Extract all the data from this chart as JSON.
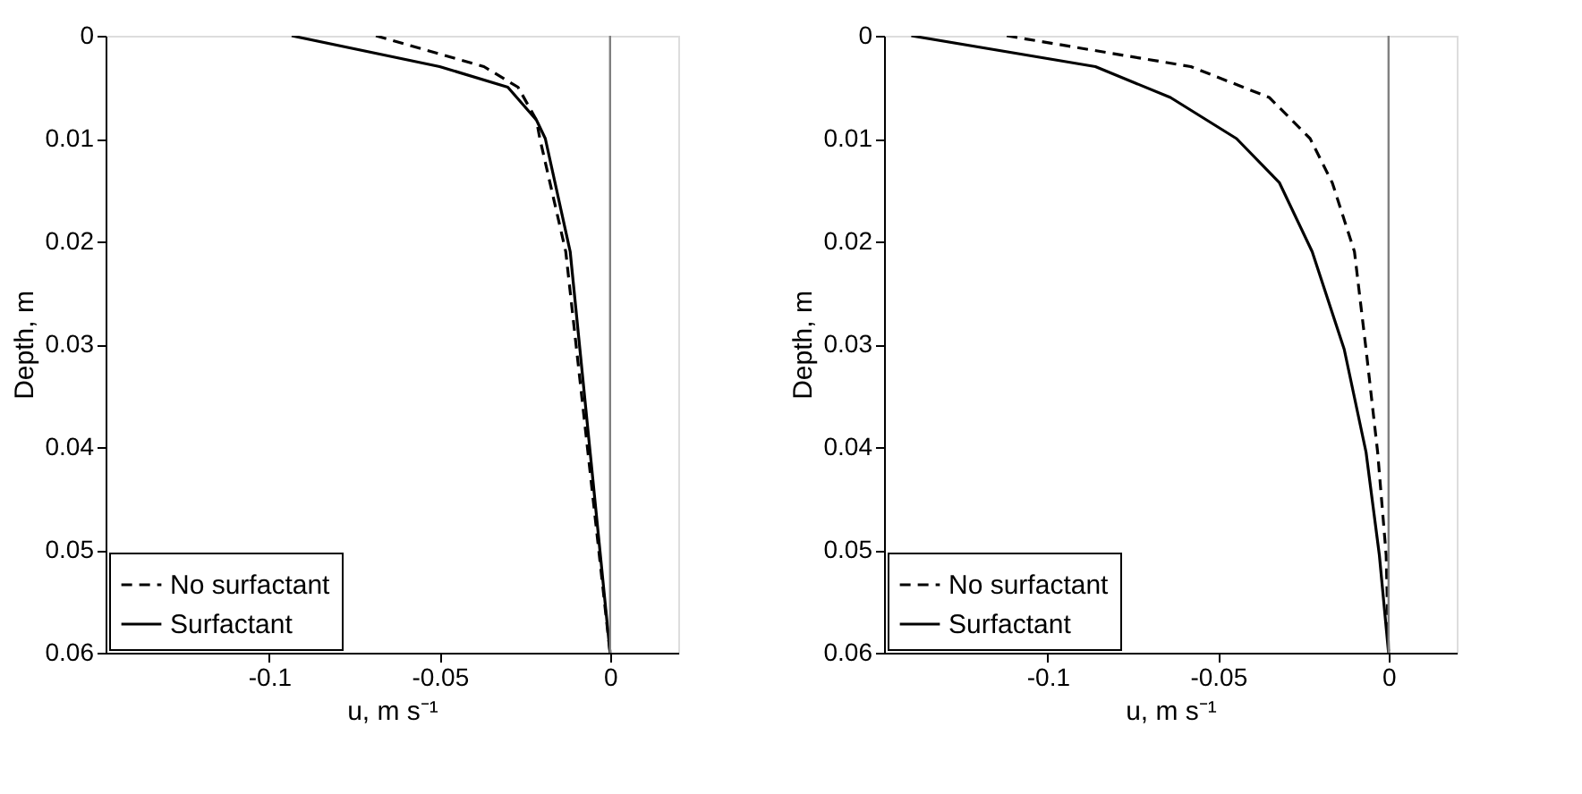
{
  "chart_data": [
    {
      "type": "line",
      "xlabel": "u, m s⁻¹",
      "ylabel": "Depth, m",
      "xlim": [
        -0.148,
        0.02
      ],
      "ylim": [
        0.06,
        0
      ],
      "xticks": [
        -0.1,
        -0.05,
        0
      ],
      "yticks": [
        0,
        0.01,
        0.02,
        0.03,
        0.04,
        0.05,
        0.06
      ],
      "legend": "bottom left",
      "ref_lines": [
        {
          "axis": "x",
          "value": 0,
          "color": "#808080"
        }
      ],
      "series": [
        {
          "name": "No surfactant",
          "color": "#000000",
          "line_style": "dashed",
          "x": [
            -0.0687,
            -0.037,
            -0.027,
            -0.0216,
            -0.0206,
            -0.013,
            0
          ],
          "values": [
            0,
            0.003,
            0.005,
            0.0082,
            0.01,
            0.021,
            0.06
          ]
        },
        {
          "name": "Surfactant",
          "color": "#000000",
          "line_style": "solid",
          "x": [
            -0.0934,
            -0.05,
            -0.03,
            -0.0216,
            -0.019,
            -0.0117,
            0
          ],
          "values": [
            0,
            0.003,
            0.005,
            0.0082,
            0.01,
            0.021,
            0.06
          ]
        }
      ]
    },
    {
      "type": "line",
      "xlabel": "u, m s⁻¹",
      "ylabel": "Depth, m",
      "xlim": [
        -0.148,
        0.02
      ],
      "ylim": [
        0.06,
        0
      ],
      "xticks": [
        -0.1,
        -0.05,
        0
      ],
      "yticks": [
        0,
        0.01,
        0.02,
        0.03,
        0.04,
        0.05,
        0.06
      ],
      "legend": "bottom left",
      "ref_lines": [
        {
          "axis": "x",
          "value": 0,
          "color": "#808080"
        }
      ],
      "series": [
        {
          "name": "No surfactant",
          "color": "#000000",
          "line_style": "dashed",
          "x": [
            -0.112,
            -0.058,
            -0.035,
            -0.023,
            -0.0165,
            -0.01,
            -0.0066,
            -0.0032,
            -0.0007,
            0
          ],
          "values": [
            0,
            0.003,
            0.006,
            0.01,
            0.0143,
            0.021,
            0.0305,
            0.0405,
            0.0505,
            0.06
          ]
        },
        {
          "name": "Surfactant",
          "color": "#000000",
          "line_style": "solid",
          "x": [
            -0.14,
            -0.086,
            -0.064,
            -0.0446,
            -0.032,
            -0.0224,
            -0.013,
            -0.0066,
            -0.0027,
            0
          ],
          "values": [
            0,
            0.003,
            0.006,
            0.01,
            0.0143,
            0.021,
            0.0305,
            0.0405,
            0.0505,
            0.06
          ]
        }
      ]
    }
  ]
}
